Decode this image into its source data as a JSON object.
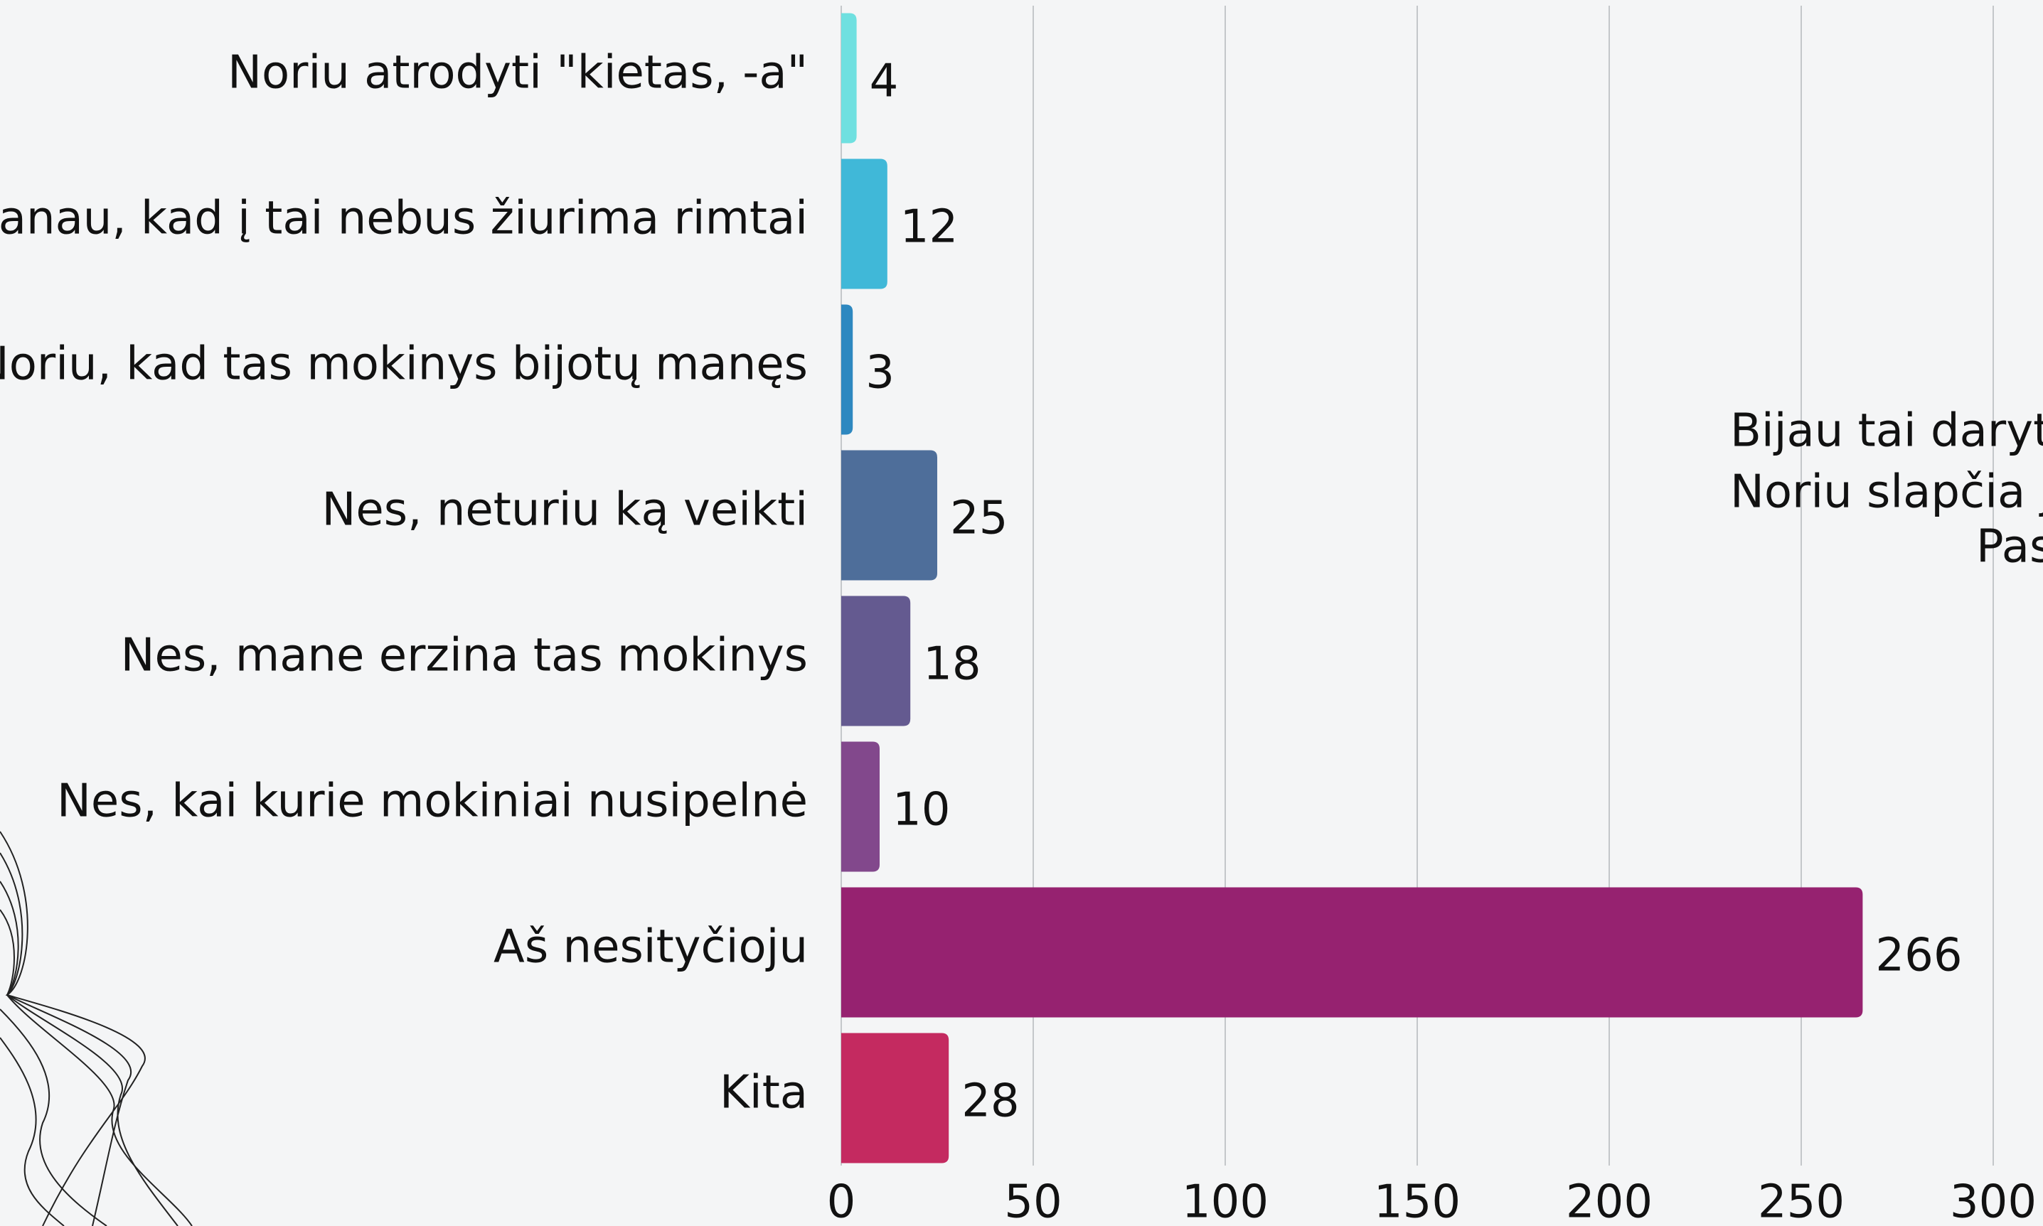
{
  "chart_data": {
    "type": "bar",
    "orientation": "horizontal",
    "categories": [
      "Noriu atrodyti \"kietas, -a\"",
      "Manau, kad į tai nebus žiurima rimtai",
      "Noriu, kad tas mokinys bijotų manęs",
      "Nes, neturiu ką veikti",
      "Nes, mane erzina tas mokinys",
      "Nes, kai kurie mokiniai nusipelnė",
      "Aš nesityčioju",
      "Kita"
    ],
    "values": [
      4,
      12,
      3,
      25,
      18,
      10,
      266,
      28
    ],
    "colors": [
      "#6fe0e0",
      "#40b8d8",
      "#2e88c0",
      "#4e6e9a",
      "#645a90",
      "#82488c",
      "#962270",
      "#c42a60"
    ],
    "xlim": [
      0,
      300
    ],
    "xticks": [
      0,
      50,
      100,
      150,
      200,
      250,
      300
    ],
    "grid": true,
    "annotations": [
      "Bijau tai daryti",
      "Noriu slapčia j",
      "Pas"
    ]
  }
}
